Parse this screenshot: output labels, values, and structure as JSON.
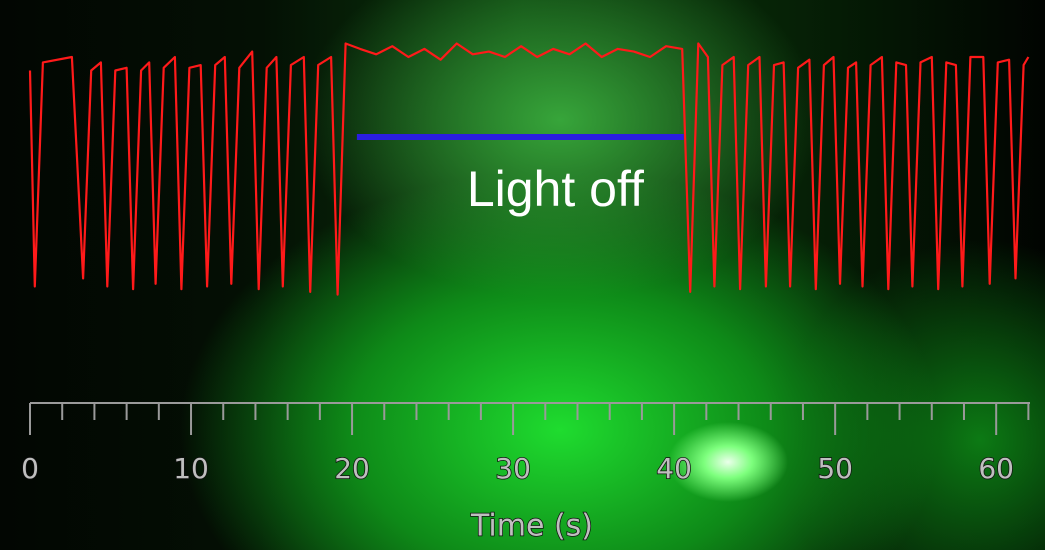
{
  "chart_data": {
    "type": "line",
    "x_label": "Time (s)",
    "xlim": [
      0,
      62.1
    ],
    "ylim": [
      0,
      1
    ],
    "xticks": [
      0,
      10,
      20,
      30,
      40,
      50,
      60
    ],
    "xminorticks": [
      2,
      4,
      6,
      8,
      12,
      14,
      16,
      18,
      22,
      24,
      26,
      28,
      32,
      34,
      36,
      38,
      42,
      44,
      46,
      48,
      52,
      54,
      56,
      58,
      62
    ],
    "series": [
      {
        "color": "#ff1a1a",
        "x": [
          0.0,
          0.3,
          0.8,
          2.6,
          3.3,
          3.8,
          4.4,
          4.8,
          5.3,
          6.0,
          6.4,
          6.9,
          7.4,
          7.8,
          8.3,
          9.0,
          9.4,
          9.9,
          10.6,
          11.0,
          11.5,
          12.1,
          12.5,
          13.0,
          13.8,
          14.2,
          14.7,
          15.3,
          15.7,
          16.2,
          17.0,
          17.4,
          17.9,
          18.7,
          19.1,
          19.6,
          20.5,
          21.5,
          22.5,
          23.5,
          24.5,
          25.5,
          26.5,
          27.5,
          28.5,
          29.5,
          30.5,
          31.5,
          32.5,
          33.5,
          34.5,
          35.5,
          36.5,
          37.5,
          38.5,
          39.5,
          40.5,
          41.0,
          41.5,
          42.1,
          42.5,
          43.0,
          43.7,
          44.1,
          44.6,
          45.3,
          45.7,
          46.2,
          46.8,
          47.2,
          47.7,
          48.4,
          48.8,
          49.3,
          49.9,
          50.3,
          50.8,
          51.3,
          51.7,
          52.2,
          52.9,
          53.3,
          53.8,
          54.4,
          54.8,
          55.3,
          56.0,
          56.4,
          56.9,
          57.5,
          57.9,
          58.4,
          59.2,
          59.6,
          60.1,
          60.8,
          61.2,
          61.7,
          62.0
        ],
        "values": [
          0.85,
          0.05,
          0.88,
          0.9,
          0.08,
          0.85,
          0.88,
          0.05,
          0.85,
          0.86,
          0.04,
          0.85,
          0.88,
          0.06,
          0.86,
          0.9,
          0.04,
          0.86,
          0.87,
          0.05,
          0.87,
          0.9,
          0.06,
          0.86,
          0.92,
          0.04,
          0.86,
          0.9,
          0.05,
          0.87,
          0.9,
          0.03,
          0.87,
          0.9,
          0.02,
          0.95,
          0.93,
          0.91,
          0.94,
          0.9,
          0.93,
          0.89,
          0.95,
          0.91,
          0.92,
          0.9,
          0.94,
          0.9,
          0.93,
          0.91,
          0.95,
          0.9,
          0.93,
          0.92,
          0.9,
          0.94,
          0.93,
          0.03,
          0.95,
          0.9,
          0.05,
          0.87,
          0.9,
          0.04,
          0.87,
          0.9,
          0.05,
          0.87,
          0.88,
          0.05,
          0.86,
          0.89,
          0.04,
          0.87,
          0.9,
          0.06,
          0.86,
          0.88,
          0.05,
          0.87,
          0.9,
          0.04,
          0.88,
          0.87,
          0.05,
          0.88,
          0.9,
          0.04,
          0.88,
          0.87,
          0.05,
          0.9,
          0.9,
          0.06,
          0.88,
          0.89,
          0.08,
          0.87,
          0.9
        ]
      }
    ],
    "annotation": {
      "text": "Light off",
      "x": [
        20.3,
        40.6
      ],
      "color": "#2a1ee0"
    }
  }
}
